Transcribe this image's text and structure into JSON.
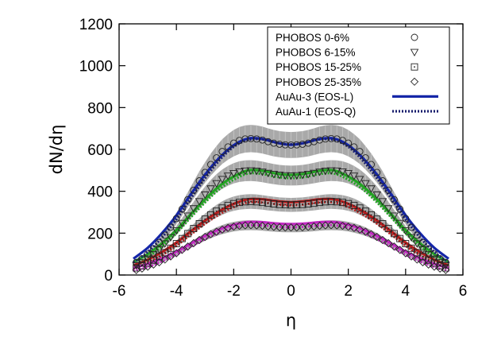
{
  "chart_data": {
    "type": "line",
    "xlabel": "η",
    "ylabel": "dN/dη",
    "xlim": [
      -6,
      6
    ],
    "ylim": [
      0,
      1200
    ],
    "xticks": [
      "-6",
      "-4",
      "-2",
      "0",
      "2",
      "4",
      "6"
    ],
    "yticks": [
      "0",
      "200",
      "400",
      "600",
      "800",
      "1000",
      "1200"
    ],
    "legend_position": "top-right",
    "phobos_eta": [
      -5.4,
      -5.2,
      -5.0,
      -4.8,
      -4.6,
      -4.4,
      -4.2,
      -4.0,
      -3.8,
      -3.6,
      -3.4,
      -3.2,
      -3.0,
      -2.8,
      -2.6,
      -2.4,
      -2.2,
      -2.0,
      -1.8,
      -1.6,
      -1.4,
      -1.2,
      -1.0,
      -0.8,
      -0.6,
      -0.4,
      -0.2,
      0.0,
      0.2,
      0.4,
      0.6,
      0.8,
      1.0,
      1.2,
      1.4,
      1.6,
      1.8,
      2.0,
      2.2,
      2.4,
      2.6,
      2.8,
      3.0,
      3.2,
      3.4,
      3.6,
      3.8,
      4.0,
      4.2,
      4.4,
      4.6,
      4.8,
      5.0,
      5.2,
      5.4
    ],
    "band_error_fraction": 0.1,
    "model_eta": [
      -5.5,
      -5.0,
      -4.5,
      -4.0,
      -3.5,
      -3.0,
      -2.5,
      -2.0,
      -1.5,
      -1.0,
      -0.5,
      0.0,
      0.5,
      1.0,
      1.5,
      2.0,
      2.5,
      3.0,
      3.5,
      4.0,
      4.5,
      5.0,
      5.5
    ],
    "series": [
      {
        "name": "PHOBOS 0-6%",
        "marker": "circle",
        "values": [
          60,
          78,
          100,
          125,
          155,
          190,
          228,
          270,
          315,
          360,
          405,
          450,
          490,
          528,
          560,
          590,
          612,
          630,
          643,
          650,
          652,
          650,
          645,
          637,
          630,
          625,
          622,
          621,
          622,
          625,
          630,
          637,
          645,
          650,
          652,
          650,
          643,
          630,
          612,
          590,
          560,
          528,
          490,
          450,
          405,
          360,
          315,
          270,
          228,
          190,
          155,
          125,
          100,
          78,
          60
        ]
      },
      {
        "name": "PHOBOS 6-15%",
        "marker": "triangle-down",
        "values": [
          46,
          60,
          78,
          98,
          122,
          150,
          180,
          213,
          248,
          283,
          318,
          352,
          384,
          413,
          438,
          458,
          474,
          486,
          494,
          498,
          499,
          497,
          493,
          487,
          482,
          478,
          476,
          475,
          476,
          478,
          482,
          487,
          493,
          497,
          499,
          498,
          494,
          486,
          474,
          458,
          438,
          413,
          384,
          352,
          318,
          283,
          248,
          213,
          180,
          150,
          122,
          98,
          78,
          60,
          46
        ]
      },
      {
        "name": "PHOBOS 15-25%",
        "marker": "square-dot",
        "values": [
          34,
          44,
          57,
          71,
          88,
          107,
          128,
          150,
          174,
          198,
          222,
          245,
          267,
          287,
          305,
          320,
          332,
          341,
          347,
          350,
          351,
          350,
          347,
          343,
          340,
          337,
          336,
          335,
          336,
          337,
          340,
          343,
          347,
          350,
          351,
          350,
          347,
          341,
          332,
          320,
          305,
          287,
          267,
          245,
          222,
          198,
          174,
          150,
          128,
          107,
          88,
          71,
          57,
          44,
          34
        ]
      },
      {
        "name": "PHOBOS 25-35%",
        "marker": "diamond",
        "values": [
          24,
          31,
          40,
          50,
          61,
          74,
          89,
          104,
          120,
          136,
          152,
          167,
          182,
          195,
          207,
          217,
          225,
          231,
          235,
          237,
          238,
          237,
          235,
          232,
          230,
          228,
          227,
          227,
          227,
          228,
          230,
          232,
          235,
          237,
          238,
          237,
          235,
          231,
          225,
          217,
          207,
          195,
          182,
          167,
          152,
          136,
          120,
          104,
          89,
          74,
          61,
          50,
          40,
          31,
          24
        ]
      },
      {
        "name": "AuAu-3 (EOS-L)",
        "style": "solid",
        "color": "#1526a8",
        "values": [
          78,
          130,
          200,
          285,
          385,
          480,
          560,
          620,
          652,
          650,
          632,
          622,
          632,
          650,
          652,
          620,
          560,
          480,
          385,
          285,
          200,
          130,
          78
        ]
      },
      {
        "name": "AuAu-1 (EOS-Q)",
        "style": "dotted",
        "color": "#1a1f6e",
        "values": [
          60,
          110,
          180,
          265,
          365,
          462,
          548,
          612,
          645,
          648,
          632,
          625,
          632,
          648,
          645,
          612,
          548,
          462,
          365,
          265,
          180,
          110,
          60
        ]
      }
    ],
    "unlabeled_model_curves": [
      {
        "color": "#23a223",
        "values": [
          62,
          100,
          152,
          215,
          290,
          362,
          425,
          470,
          500,
          498,
          484,
          478,
          484,
          498,
          500,
          470,
          425,
          362,
          290,
          215,
          152,
          100,
          62
        ]
      },
      {
        "color": "#b71c1c",
        "values": [
          46,
          73,
          110,
          155,
          208,
          260,
          305,
          340,
          362,
          362,
          353,
          348,
          353,
          362,
          362,
          340,
          305,
          260,
          208,
          155,
          110,
          73,
          46
        ]
      },
      {
        "color": "#c227c2",
        "values": [
          34,
          53,
          80,
          112,
          150,
          187,
          218,
          240,
          253,
          252,
          246,
          243,
          246,
          252,
          253,
          240,
          218,
          187,
          150,
          112,
          80,
          53,
          34
        ]
      }
    ]
  }
}
